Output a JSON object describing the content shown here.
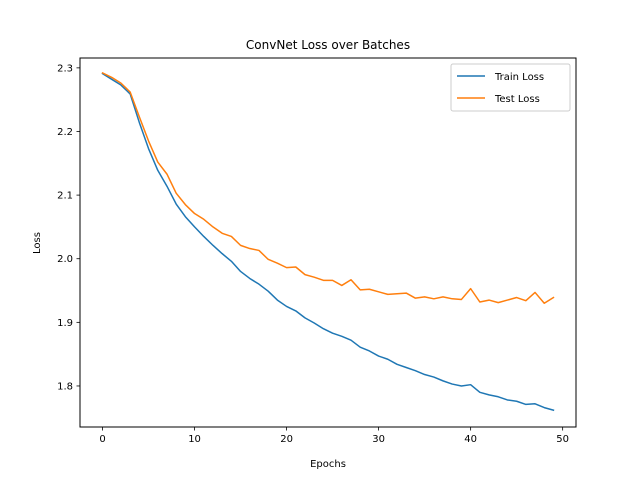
{
  "chart_data": {
    "type": "line",
    "title": "ConvNet Loss over Batches",
    "xlabel": "Epochs",
    "ylabel": "Loss",
    "xlim": [
      -2.45,
      51.45
    ],
    "ylim": [
      1.7355,
      2.3155
    ],
    "xticks": [
      0,
      10,
      20,
      30,
      40,
      50
    ],
    "yticks": [
      1.8,
      1.9,
      2.0,
      2.1,
      2.2,
      2.3
    ],
    "ytick_labels": [
      "1.8",
      "1.9",
      "2.0",
      "2.1",
      "2.2",
      "2.3"
    ],
    "grid": false,
    "legend_position": "top-right",
    "x": [
      0,
      1,
      2,
      3,
      4,
      5,
      6,
      7,
      8,
      9,
      10,
      11,
      12,
      13,
      14,
      15,
      16,
      17,
      18,
      19,
      20,
      21,
      22,
      23,
      24,
      25,
      26,
      27,
      28,
      29,
      30,
      31,
      32,
      33,
      34,
      35,
      36,
      37,
      38,
      39,
      40,
      41,
      42,
      43,
      44,
      45,
      46,
      47,
      48,
      49
    ],
    "series": [
      {
        "name": "Train Loss",
        "color": "#1f77b4",
        "values": [
          2.291,
          2.282,
          2.273,
          2.259,
          2.214,
          2.173,
          2.139,
          2.114,
          2.086,
          2.066,
          2.05,
          2.035,
          2.021,
          2.008,
          1.996,
          1.98,
          1.969,
          1.96,
          1.949,
          1.935,
          1.925,
          1.918,
          1.907,
          1.899,
          1.89,
          1.883,
          1.878,
          1.872,
          1.861,
          1.855,
          1.847,
          1.842,
          1.834,
          1.829,
          1.824,
          1.818,
          1.814,
          1.808,
          1.803,
          1.8,
          1.802,
          1.79,
          1.786,
          1.783,
          1.778,
          1.776,
          1.771,
          1.772,
          1.766,
          1.762
        ]
      },
      {
        "name": "Test Loss",
        "color": "#ff7f0e",
        "values": [
          2.292,
          2.285,
          2.276,
          2.262,
          2.223,
          2.185,
          2.152,
          2.133,
          2.103,
          2.085,
          2.071,
          2.062,
          2.05,
          2.04,
          2.035,
          2.021,
          2.016,
          2.013,
          1.999,
          1.993,
          1.986,
          1.987,
          1.975,
          1.971,
          1.966,
          1.966,
          1.958,
          1.967,
          1.951,
          1.952,
          1.948,
          1.944,
          1.945,
          1.946,
          1.938,
          1.94,
          1.937,
          1.94,
          1.937,
          1.936,
          1.953,
          1.932,
          1.935,
          1.931,
          1.935,
          1.939,
          1.934,
          1.947,
          1.93,
          1.939
        ]
      }
    ]
  }
}
